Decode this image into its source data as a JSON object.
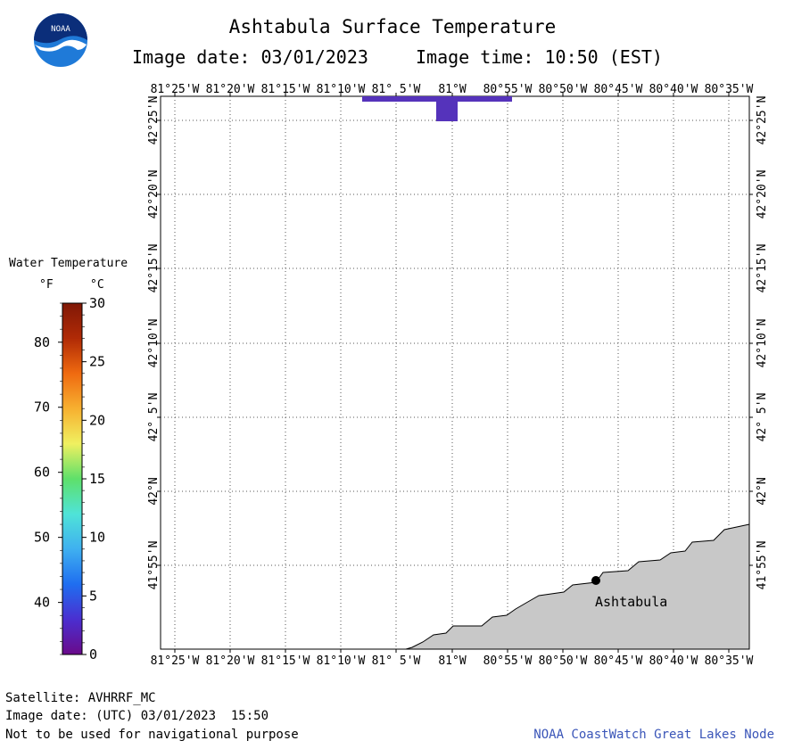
{
  "title": "Ashtabula Surface Temperature",
  "image_date_label": "Image date: 03/01/2023",
  "image_time_label": "Image time: 10:50 (EST)",
  "logo_text": "NOAA",
  "legend": {
    "title": "Water Temperature",
    "unit_f": "°F",
    "unit_c": "°C",
    "f_ticks": [
      {
        "label": "80"
      },
      {
        "label": "70"
      },
      {
        "label": "60"
      },
      {
        "label": "50"
      },
      {
        "label": "40"
      }
    ],
    "c_ticks": [
      {
        "label": "30"
      },
      {
        "label": "25"
      },
      {
        "label": "20"
      },
      {
        "label": "15"
      },
      {
        "label": "10"
      },
      {
        "label": "5"
      },
      {
        "label": "0"
      }
    ],
    "colors": [
      "#6a0a8a",
      "#4a2fd0",
      "#1f6ef0",
      "#3fb0f0",
      "#4fe3d8",
      "#5ee06a",
      "#f0f060",
      "#f7b030",
      "#ef6a10",
      "#b02a06",
      "#801806"
    ]
  },
  "map": {
    "longitude_labels": [
      "81°25'W",
      "81°20'W",
      "81°15'W",
      "81°10'W",
      "81° 5'W",
      "81°W",
      "80°55'W",
      "80°50'W",
      "80°45'W",
      "80°40'W",
      "80°35'W"
    ],
    "latitude_labels": [
      "42°25'N",
      "42°20'N",
      "42°15'N",
      "42°10'N",
      "42° 5'N",
      "42°N",
      "41°55'N"
    ],
    "city_label": "Ashtabula",
    "land_color": "#c8c8c8",
    "data_color": "#5533bb"
  },
  "footer": {
    "satellite": "Satellite: AVHRRF_MC",
    "utc_date": "Image date: (UTC) 03/01/2023  15:50",
    "disclaimer": "Not to be used for navigational purpose",
    "credit": "NOAA CoastWatch Great Lakes Node"
  }
}
